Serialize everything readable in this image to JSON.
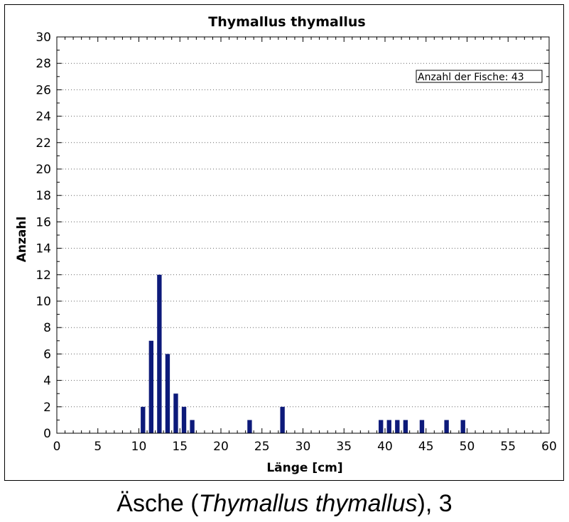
{
  "chart_data": {
    "type": "bar",
    "title": "Thymallus thymallus",
    "xlabel": "Länge [cm]",
    "ylabel": "Anzahl",
    "xlim": [
      0,
      60
    ],
    "ylim": [
      0,
      30
    ],
    "x_ticks": [
      "0",
      "5",
      "10",
      "15",
      "20",
      "25",
      "30",
      "35",
      "40",
      "45",
      "50",
      "55",
      "60"
    ],
    "y_ticks": [
      "0",
      "2",
      "4",
      "6",
      "8",
      "10",
      "12",
      "14",
      "16",
      "18",
      "20",
      "22",
      "24",
      "26",
      "28",
      "30"
    ],
    "grid": "horizontal dotted",
    "bar_color": "#0d1a7a",
    "x": [
      10.5,
      11.5,
      12.5,
      13.5,
      14.5,
      15.5,
      16.5,
      23.5,
      27.5,
      39.5,
      40.5,
      41.5,
      42.5,
      44.5,
      47.5,
      49.5
    ],
    "values": [
      2,
      7,
      12,
      6,
      3,
      2,
      1,
      1,
      2,
      1,
      1,
      1,
      1,
      1,
      1,
      1
    ],
    "annotation": "Anzahl der Fische: 43"
  },
  "caption": {
    "prefix": "Äsche (",
    "species": "Thymallus thymallus",
    "suffix": "), ",
    "number": "3"
  }
}
